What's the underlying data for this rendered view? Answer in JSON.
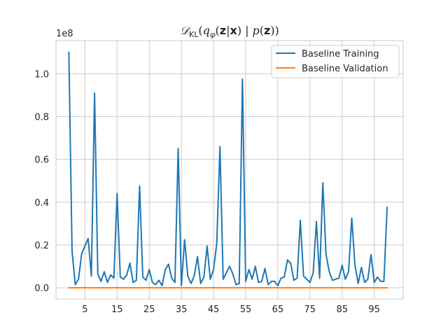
{
  "chart_data": {
    "type": "line",
    "title": "𝓓_KL(q_φ(z|x) | p(z))",
    "title_parts": {
      "script_d": "𝒟",
      "kl": "KL",
      "open": "(",
      "q": "q",
      "phi": "φ",
      "arg_open": "(",
      "z1": "z",
      "bar": "|",
      "x": "x",
      "arg_close": ")",
      "sep": "|",
      "p": "p",
      "p_open": "(",
      "z2": "z",
      "p_close": ")",
      "close": ")"
    },
    "xlabel": "",
    "ylabel": "",
    "y_offset_label": "1e8",
    "y_scale": 100000000,
    "xlim": [
      -4,
      104
    ],
    "ylim": [
      -5200000,
      115500000
    ],
    "x_ticks": [
      5,
      15,
      25,
      35,
      45,
      55,
      65,
      75,
      85,
      95
    ],
    "x_tick_labels": [
      "5",
      "15",
      "25",
      "35",
      "45",
      "55",
      "65",
      "75",
      "85",
      "95"
    ],
    "y_ticks": [
      0,
      20000000,
      40000000,
      60000000,
      80000000,
      100000000
    ],
    "y_tick_labels": [
      "0.0",
      "0.2",
      "0.4",
      "0.6",
      "0.8",
      "1.0"
    ],
    "grid": true,
    "legend_position": "top-right",
    "x": [
      0,
      1,
      2,
      3,
      4,
      5,
      6,
      7,
      8,
      9,
      10,
      11,
      12,
      13,
      14,
      15,
      16,
      17,
      18,
      19,
      20,
      21,
      22,
      23,
      24,
      25,
      26,
      27,
      28,
      29,
      30,
      31,
      32,
      33,
      34,
      35,
      36,
      37,
      38,
      39,
      40,
      41,
      42,
      43,
      44,
      45,
      46,
      47,
      48,
      49,
      50,
      51,
      52,
      53,
      54,
      55,
      56,
      57,
      58,
      59,
      60,
      61,
      62,
      63,
      64,
      65,
      66,
      67,
      68,
      69,
      70,
      71,
      72,
      73,
      74,
      75,
      76,
      77,
      78,
      79,
      80,
      81,
      82,
      83,
      84,
      85,
      86,
      87,
      88,
      89,
      90,
      91,
      92,
      93,
      94,
      95,
      96,
      97,
      98,
      99
    ],
    "series": [
      {
        "name": "Baseline Training",
        "color": "#1f77b4",
        "values": [
          110000000,
          17000000,
          1500000,
          4000000,
          16000000,
          19500000,
          23000000,
          5500000,
          91000000,
          6500000,
          3000000,
          7500000,
          2500000,
          6000000,
          4500000,
          44000000,
          5000000,
          4000000,
          6000000,
          11500000,
          2500000,
          3500000,
          47500000,
          5000000,
          3500000,
          8500000,
          2500000,
          1500000,
          3500000,
          1000000,
          8500000,
          11000000,
          4500000,
          2500000,
          65000000,
          1000000,
          22500000,
          5500000,
          2000000,
          5500000,
          14500000,
          2000000,
          5000000,
          19500000,
          4000000,
          8500000,
          20500000,
          66000000,
          4000000,
          7000000,
          10000000,
          6500000,
          1500000,
          2000000,
          97500000,
          3000000,
          8500000,
          4000000,
          10000000,
          2500000,
          3000000,
          9000000,
          1500000,
          3000000,
          3000000,
          1000000,
          4500000,
          5000000,
          13000000,
          11500000,
          3500000,
          4500000,
          31500000,
          5500000,
          4000000,
          2500000,
          7000000,
          31000000,
          4500000,
          49000000,
          15500000,
          7500000,
          3500000,
          4000000,
          4500000,
          10500000,
          4000000,
          7500000,
          32500000,
          10500000,
          2000000,
          9500000,
          2500000,
          4000000,
          15500000,
          2500000,
          5000000,
          3000000,
          3000000,
          37500000
        ]
      },
      {
        "name": "Baseline Validation",
        "color": "#ff7f0e",
        "values": [
          0,
          0,
          0,
          0,
          0,
          0,
          0,
          0,
          0,
          0,
          0,
          0,
          0,
          0,
          0,
          0,
          0,
          0,
          0,
          0,
          0,
          0,
          0,
          0,
          0,
          0,
          0,
          0,
          0,
          0,
          0,
          0,
          0,
          0,
          0,
          0,
          0,
          0,
          0,
          0,
          0,
          0,
          0,
          0,
          0,
          0,
          0,
          0,
          0,
          0,
          0,
          0,
          0,
          0,
          0,
          0,
          0,
          0,
          0,
          0,
          0,
          0,
          0,
          0,
          0,
          0,
          0,
          0,
          0,
          0,
          0,
          0,
          0,
          0,
          0,
          0,
          0,
          0,
          0,
          0,
          0,
          0,
          0,
          0,
          0,
          0,
          0,
          0,
          0,
          0,
          0,
          0,
          0,
          0,
          0,
          0,
          0,
          0,
          0,
          0
        ]
      }
    ]
  }
}
